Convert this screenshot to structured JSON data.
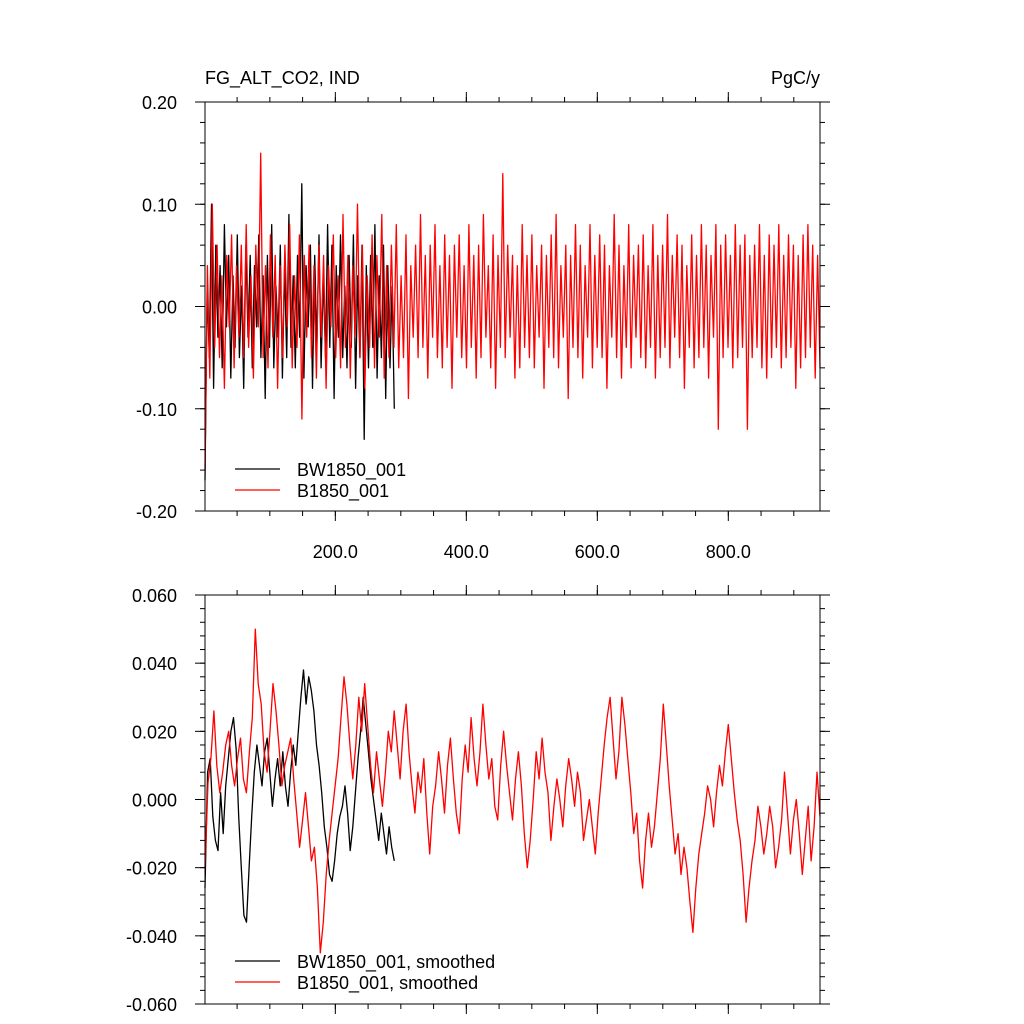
{
  "chart_data": [
    {
      "type": "line",
      "title_left": "FG_ALT_CO2, IND",
      "title_right": "PgC/y",
      "xlim": [
        1,
        940
      ],
      "ylim": [
        -0.2,
        0.2
      ],
      "yticks": [
        "-0.20",
        "-0.10",
        "0.00",
        "0.10",
        "0.20"
      ],
      "xticks": [
        "200.0",
        "400.0",
        "600.0",
        "800.0"
      ],
      "grid": false,
      "legend_position": "bottom-left",
      "series": [
        {
          "name": "BW1850_001",
          "color": "#000000",
          "x_start": 1,
          "values": [
            -0.17,
            0.02,
            -0.05,
            0.1,
            -0.08,
            0.06,
            -0.03,
            0.04,
            -0.06,
            0.08,
            -0.02,
            0.05,
            -0.07,
            0.03,
            -0.04,
            0.07,
            -0.05,
            0.02,
            -0.08,
            0.06,
            -0.03,
            0.05,
            -0.06,
            0.04,
            -0.02,
            0.07,
            -0.05,
            0.03,
            -0.09,
            0.05,
            -0.04,
            0.08,
            -0.06,
            0.02,
            -0.03,
            0.06,
            -0.07,
            0.04,
            -0.05,
            0.09,
            -0.04,
            0.03,
            -0.06,
            0.05,
            -0.03,
            0.12,
            -0.07,
            0.04,
            -0.02,
            0.06,
            -0.08,
            0.05,
            -0.04,
            0.07,
            -0.06,
            0.03,
            -0.05,
            0.08,
            -0.04,
            0.06,
            -0.09,
            0.04,
            -0.03,
            0.07,
            -0.05,
            0.02,
            -0.06,
            0.05,
            -0.04,
            0.07,
            -0.08,
            0.03,
            -0.05,
            0.06,
            -0.13,
            0.04,
            -0.06,
            0.05,
            -0.04,
            0.08,
            -0.07,
            0.03,
            -0.05,
            0.06,
            -0.09,
            0.04,
            -0.06,
            0.02,
            -0.1
          ]
        },
        {
          "name": "B1850_001",
          "color": "#ff0000",
          "x_start": 1,
          "values": [
            -0.16,
            0.04,
            -0.07,
            0.1,
            -0.04,
            0.06,
            -0.05,
            0.03,
            -0.08,
            0.05,
            -0.02,
            0.07,
            -0.06,
            0.04,
            -0.03,
            0.06,
            -0.05,
            0.08,
            -0.04,
            0.03,
            -0.07,
            0.06,
            -0.02,
            0.15,
            -0.05,
            0.04,
            -0.06,
            0.07,
            -0.03,
            0.05,
            -0.08,
            0.04,
            -0.05,
            0.06,
            -0.02,
            0.08,
            -0.06,
            0.03,
            -0.04,
            0.07,
            -0.11,
            0.05,
            -0.03,
            0.06,
            -0.05,
            0.04,
            -0.07,
            0.06,
            -0.03,
            0.05,
            -0.08,
            0.04,
            -0.02,
            0.07,
            -0.05,
            0.03,
            -0.06,
            0.09,
            -0.04,
            0.05,
            -0.07,
            0.04,
            -0.03,
            0.1,
            -0.05,
            0.06,
            -0.08,
            0.03,
            -0.04,
            0.07,
            -0.06,
            0.05,
            -0.03,
            0.09,
            -0.07,
            0.04,
            -0.05,
            0.06,
            -0.04,
            0.08,
            -0.06,
            0.03,
            -0.05,
            0.07,
            -0.09,
            0.04,
            -0.03,
            0.06,
            -0.05,
            0.09,
            -0.04,
            0.05,
            -0.07,
            0.06,
            -0.03,
            0.08,
            -0.05,
            0.04,
            -0.06,
            0.07,
            -0.04,
            0.05,
            -0.08,
            0.06,
            -0.03,
            0.07,
            -0.05,
            0.04,
            -0.06,
            0.08,
            -0.04,
            0.05,
            -0.07,
            0.06,
            -0.05,
            0.09,
            -0.03,
            0.04,
            -0.06,
            0.07,
            -0.08,
            0.05,
            -0.04,
            0.13,
            -0.05,
            0.06,
            -0.03,
            0.05,
            -0.07,
            0.04,
            -0.06,
            0.08,
            -0.04,
            0.05,
            -0.05,
            0.07,
            -0.06,
            0.04,
            -0.03,
            0.06,
            -0.08,
            0.05,
            -0.04,
            0.07,
            -0.05,
            0.09,
            -0.06,
            0.04,
            -0.03,
            0.06,
            -0.09,
            0.05,
            -0.04,
            0.08,
            -0.05,
            0.06,
            -0.07,
            0.04,
            -0.03,
            0.08,
            -0.06,
            0.05,
            -0.04,
            0.07,
            -0.05,
            0.06,
            -0.08,
            0.04,
            -0.03,
            0.09,
            -0.05,
            0.06,
            -0.07,
            0.04,
            -0.04,
            0.08,
            -0.06,
            0.05,
            -0.03,
            0.06,
            -0.05,
            0.07,
            -0.06,
            0.04,
            -0.04,
            0.08,
            -0.07,
            0.05,
            -0.05,
            0.06,
            -0.04,
            0.09,
            -0.06,
            0.05,
            -0.03,
            0.07,
            -0.05,
            0.06,
            -0.08,
            0.04,
            -0.04,
            0.07,
            -0.06,
            0.05,
            -0.05,
            0.08,
            -0.04,
            0.06,
            -0.07,
            0.05,
            -0.03,
            0.08,
            -0.12,
            0.06,
            -0.05,
            0.07,
            -0.04,
            0.05,
            -0.06,
            0.08,
            -0.05,
            0.06,
            -0.04,
            0.07,
            -0.12,
            0.05,
            -0.05,
            0.06,
            -0.04,
            0.08,
            -0.06,
            0.05,
            -0.07,
            0.07,
            -0.05,
            0.06,
            -0.04,
            0.08,
            -0.06,
            0.05,
            -0.05,
            0.07,
            -0.04,
            0.06,
            -0.08,
            0.05,
            -0.06,
            0.07,
            -0.05,
            0.08,
            -0.04,
            0.06,
            -0.07,
            0.05,
            -0.06
          ]
        }
      ],
      "legend": [
        "BW1850_001",
        "B1850_001"
      ]
    },
    {
      "type": "line",
      "xlim": [
        1,
        940
      ],
      "ylim": [
        -0.06,
        0.06
      ],
      "yticks": [
        "-0.060",
        "-0.040",
        "-0.020",
        "0.000",
        "0.020",
        "0.040",
        "0.060"
      ],
      "grid": false,
      "legend_position": "bottom-left",
      "series": [
        {
          "name": "BW1850_001, smoothed",
          "color": "#000000",
          "x_start": 1,
          "values": [
            -0.026,
            0.008,
            0.012,
            -0.005,
            -0.012,
            -0.015,
            0.002,
            -0.01,
            0.004,
            0.012,
            0.02,
            0.024,
            0.015,
            -0.005,
            -0.02,
            -0.034,
            -0.036,
            -0.02,
            -0.005,
            0.008,
            0.016,
            0.01,
            0.004,
            0.014,
            0.018,
            0.008,
            -0.002,
            0.006,
            0.012,
            0.004,
            0.014,
            0.004,
            -0.002,
            0.008,
            0.016,
            0.01,
            0.02,
            0.03,
            0.038,
            0.028,
            0.036,
            0.032,
            0.026,
            0.016,
            0.01,
            0.002,
            -0.008,
            -0.014,
            -0.022,
            -0.024,
            -0.018,
            -0.01,
            -0.005,
            -0.002,
            0.004,
            -0.004,
            -0.015,
            -0.008,
            0.002,
            0.012,
            0.02,
            0.03,
            0.022,
            0.014,
            0.006,
            0.0,
            -0.006,
            -0.012,
            -0.004,
            -0.01,
            -0.016,
            -0.008,
            -0.014,
            -0.018
          ]
        },
        {
          "name": "B1850_001, smoothed",
          "color": "#ff0000",
          "x_start": 1,
          "values": [
            -0.02,
            0.005,
            0.012,
            0.026,
            0.01,
            0.002,
            0.008,
            0.016,
            0.02,
            0.01,
            0.004,
            0.012,
            0.018,
            0.006,
            0.002,
            0.014,
            0.024,
            0.05,
            0.034,
            0.028,
            0.014,
            0.008,
            0.02,
            0.034,
            0.026,
            0.016,
            0.004,
            0.01,
            0.014,
            0.018,
            0.006,
            -0.004,
            -0.014,
            -0.006,
            0.002,
            -0.008,
            -0.018,
            -0.014,
            -0.026,
            -0.045,
            -0.036,
            -0.022,
            -0.012,
            -0.004,
            0.004,
            0.012,
            0.024,
            0.036,
            0.028,
            0.016,
            0.006,
            0.016,
            0.03,
            0.02,
            0.034,
            0.022,
            0.01,
            0.002,
            0.014,
            0.006,
            -0.002,
            0.008,
            0.02,
            0.014,
            0.026,
            0.016,
            0.006,
            0.02,
            0.028,
            0.014,
            0.004,
            -0.004,
            0.008,
            0.002,
            0.012,
            -0.004,
            -0.016,
            -0.002,
            0.004,
            0.014,
            0.006,
            -0.004,
            0.01,
            0.018,
            0.006,
            -0.004,
            -0.01,
            0.006,
            0.016,
            0.008,
            0.024,
            0.012,
            0.004,
            0.014,
            0.028,
            0.016,
            0.006,
            0.012,
            -0.002,
            -0.006,
            0.01,
            0.02,
            0.01,
            0.002,
            -0.006,
            0.006,
            0.014,
            0.004,
            -0.01,
            -0.02,
            -0.012,
            0.0,
            0.014,
            0.006,
            0.018,
            0.008,
            0.002,
            -0.012,
            -0.002,
            0.006,
            0.0,
            -0.008,
            0.004,
            0.012,
            0.006,
            -0.002,
            0.008,
            0.002,
            -0.012,
            -0.006,
            0.0,
            -0.008,
            -0.016,
            -0.004,
            0.006,
            0.016,
            0.024,
            0.03,
            0.018,
            0.006,
            0.014,
            0.03,
            0.022,
            0.012,
            0.002,
            -0.01,
            -0.004,
            -0.018,
            -0.026,
            -0.012,
            -0.004,
            -0.014,
            -0.008,
            0.002,
            0.012,
            0.028,
            0.016,
            0.004,
            -0.006,
            -0.016,
            -0.01,
            -0.022,
            -0.014,
            -0.02,
            -0.03,
            -0.039,
            -0.026,
            -0.016,
            -0.01,
            -0.004,
            0.004,
            0.0,
            -0.008,
            0.002,
            0.01,
            0.004,
            0.014,
            0.022,
            0.012,
            0.002,
            -0.006,
            -0.012,
            -0.022,
            -0.036,
            -0.026,
            -0.018,
            -0.012,
            -0.002,
            -0.008,
            -0.016,
            -0.01,
            -0.002,
            -0.008,
            -0.02,
            -0.014,
            -0.006,
            0.008,
            -0.004,
            -0.016,
            -0.006,
            0.0,
            -0.01,
            -0.022,
            -0.012,
            -0.002,
            -0.018,
            -0.008,
            0.008,
            -0.005
          ]
        }
      ],
      "legend": [
        "BW1850_001, smoothed",
        "B1850_001, smoothed"
      ]
    }
  ]
}
